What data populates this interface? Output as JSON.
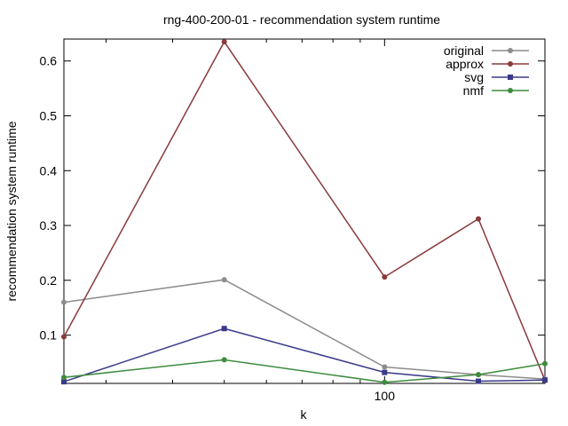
{
  "chart_data": {
    "type": "line",
    "title": "rng-400-200-01 - recommendation system runtime",
    "xlabel": "k",
    "ylabel": "recommendation system runtime",
    "x_scale": "log",
    "xlim": [
      25,
      200
    ],
    "ylim": [
      0.012,
      0.64
    ],
    "x": [
      25,
      50,
      100,
      150,
      200
    ],
    "x_ticks": [
      100
    ],
    "y_ticks": [
      0.1,
      0.2,
      0.3,
      0.4,
      0.5,
      0.6
    ],
    "legend_position": "top-right",
    "series": [
      {
        "name": "original",
        "color": "#8c8c8c",
        "marker": "circle",
        "values": [
          0.16,
          0.201,
          0.042,
          0.028,
          0.02
        ]
      },
      {
        "name": "approx",
        "color": "#8b3a3a",
        "marker": "circle",
        "values": [
          0.097,
          0.635,
          0.206,
          0.312,
          0.018
        ]
      },
      {
        "name": "svg",
        "color": "#3a3a8b",
        "marker": "square",
        "values": [
          0.015,
          0.112,
          0.032,
          0.016,
          0.018
        ]
      },
      {
        "name": "nmf",
        "color": "#3d8b3d",
        "marker": "circle",
        "values": [
          0.023,
          0.055,
          0.014,
          0.028,
          0.048
        ]
      }
    ]
  }
}
